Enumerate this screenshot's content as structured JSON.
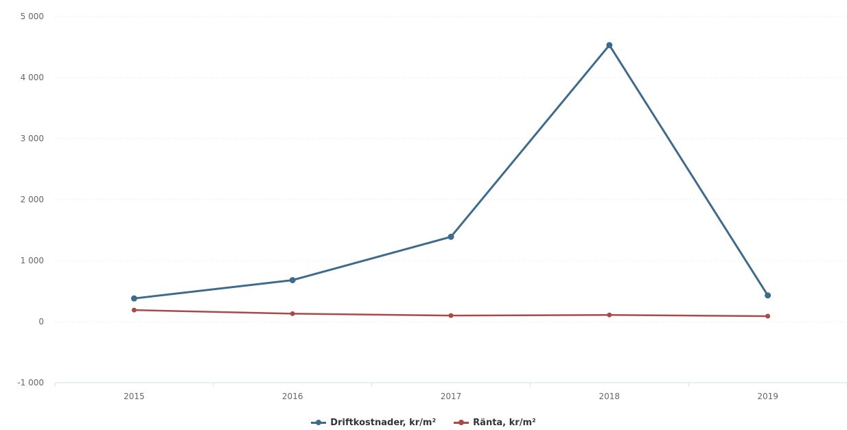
{
  "chart_data": {
    "type": "line",
    "categories": [
      "2015",
      "2016",
      "2017",
      "2018",
      "2019"
    ],
    "ylim": [
      -1000,
      5000
    ],
    "yticks": [
      -1000,
      0,
      1000,
      2000,
      3000,
      4000,
      5000
    ],
    "ytick_labels": [
      "-1 000",
      "0",
      "1 000",
      "2 000",
      "3 000",
      "4 000",
      "5 000"
    ],
    "grid": true,
    "legend": "bottom-center",
    "series": [
      {
        "name": "Driftkostnader, kr/m²",
        "color": "#3e6a8c",
        "values": [
          380,
          680,
          1390,
          4530,
          430
        ]
      },
      {
        "name": "Ränta, kr/m²",
        "color": "#a84a4a",
        "values": [
          190,
          130,
          100,
          110,
          90
        ]
      }
    ]
  }
}
